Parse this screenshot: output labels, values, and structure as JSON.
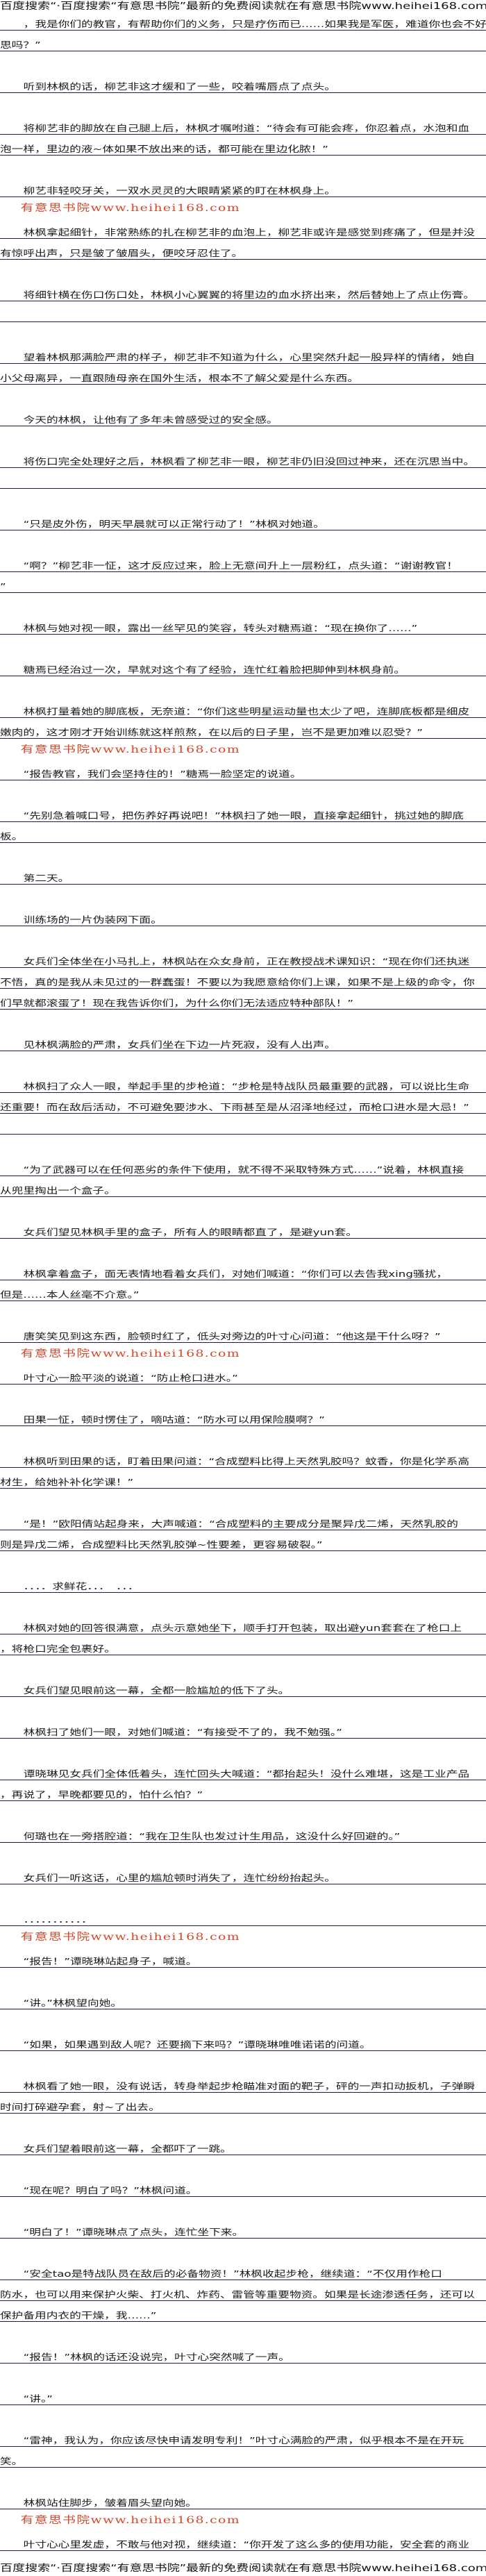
{
  "header": {
    "text": "百度搜索“·百度搜索“有意思书院”最新的免费阅读就在有意思书院www.heihei168.com"
  },
  "footer": {
    "text": "百度搜索“·百度搜索“有意思书院”最新的免费阅读就在有意思书院www.heihei168.com"
  },
  "watermark": {
    "text": "有意思书院www.heihei168.com",
    "color": "#d2482a"
  },
  "body": {
    "paragraphs": [
      [
        "，我是你们的教官，有帮助你们的义务，只是疗伤而已……如果我是军医，难道你也会不好意",
        "思吗？”"
      ],
      [
        "听到林枫的话，柳艺非这才缓和了一些，咬着嘴唇点了点头。"
      ],
      [
        "将柳艺非的脚放在自己腿上后，林枫才嘱咐道：“待会有可能会疼，你忍着点，水泡和血",
        "泡一样，里边的液~体如果不放出来的话，都可能在里边化脓！”"
      ],
      [
        "柳艺非轻咬牙关，一双水灵灵的大眼睛紧紧的盯在林枫身上。"
      ],
      [
        "林枫拿起细针，非常熟练的扎在柳艺非的血泡上，柳艺非或许是感觉到疼痛了，但是并没",
        "有惊呼出声，只是皱了皱眉头，便咬牙忍住了。"
      ],
      [
        "将细针横在伤口伤口处，林枫小心翼翼的将里边的血水挤出来，然后替她上了点止伤膏。",
        ""
      ],
      [
        "望着林枫那满脸严肃的样子，柳艺非不知道为什么，心里突然升起一股异样的情绪，她自",
        "小父母离异，一直跟随母亲在国外生活，根本不了解父爱是什么东西。"
      ],
      [
        "今天的林枫，让他有了多年未曾感受过的安全感。"
      ],
      [
        "将伤口完全处理好之后，林枫看了柳艺非一眼，柳艺非仍旧没回过神来，还在沉思当中。",
        ""
      ],
      [
        "“只是皮外伤，明天早晨就可以正常行动了！”林枫对她道。"
      ],
      [
        "“啊？”柳艺非一怔，这才反应过来，脸上无意间升上一层粉红，点头道：“谢谢教官！",
        "”"
      ],
      [
        "林枫与她对视一眼，露出一丝罕见的笑容，转头对糖焉道：“现在换你了……”"
      ],
      [
        "糖焉已经治过一次，早就对这个有了经验，连忙红着脸把脚伸到林枫身前。"
      ],
      [
        "林枫打量着她的脚底板，无奈道：“你们这些明星运动量也太少了吧，连脚底板都是细皮",
        "嫩肉的，这才刚才开始训练就这样煎熬，在以后的日子里，岂不是更加难以忍受？”"
      ],
      [
        "“报告教官，我们会坚持住的！”糖焉一脸坚定的说道。"
      ],
      [
        "“先别急着喊口号，把伤养好再说吧！”林枫扫了她一眼，直接拿起细针，挑过她的脚底",
        "板。"
      ],
      [
        "第二天。"
      ],
      [
        "训练场的一片伪装网下面。"
      ],
      [
        "女兵们全体坐在小马扎上，林枫站在众女身前，正在教授战术课知识：“现在你们还执迷",
        "不悟，真的是我从未见过的一群蠢蛋！不要以为我愿意给你们上课，如果不是上级的命令，你",
        "们早就都滚蛋了！现在我告诉你们，为什么你们无法适应特种部队！”"
      ],
      [
        "见林枫满脸的严肃，女兵们坐在下边一片死寂，没有人出声。"
      ],
      [
        "林枫扫了众人一眼，举起手里的步枪道：“步枪是特战队员最重要的武器，可以说比生命",
        "还重要！而在敌后活动，不可避免要涉水、下雨甚至是从沼泽地经过，而枪口进水是大忌！”",
        ""
      ],
      [
        "“为了武器可以在任何恶劣的条件下使用，就不得不采取特殊方式……”说着，林枫直接",
        "从兜里掏出一个盒子。"
      ],
      [
        "女兵们望见林枫手里的盒子，所有人的眼睛都直了，是避yun套。"
      ],
      [
        "林枫拿着盒子，面无表情地看着女兵们，对她们喊道：“你们可以去告我xing骚扰，",
        "但是……本人丝毫不介意。”"
      ],
      [
        "唐笑笑见到这东西，脸顿时红了，低头对旁边的叶寸心问道：“他这是干什么呀？”"
      ],
      [
        "叶寸心一脸平淡的说道：“防止枪口进水。”"
      ],
      [
        "田果一怔，顿时愣住了，嘀咕道：“防水可以用保险膜啊？”"
      ],
      [
        "林枫听到田果的话，盯着田果问道：“合成塑料比得上天然乳胶吗？蚊香，你是化学系高",
        "材生，给她补补化学课！”"
      ],
      [
        "“是！”欧阳倩站起身来，大声喊道：“合成塑料的主要成分是聚异戊二烯，天然乳胶的",
        "则是异戊二烯，合成塑料比天然乳胶弹~性要差，更容易破裂。”"
      ],
      [
        "．．．．求鲜花．．．　．．．"
      ],
      [
        "林枫对她的回答很满意，点头示意她坐下，顺手打开包装，取出避yun套套在了枪口上",
        "，将枪口完全包裹好。"
      ],
      [
        "女兵们望见眼前这一幕，全都一脸尴尬的低下了头。"
      ],
      [
        "林枫扫了她们一眼，对她们喊道：“有接受不了的，我不勉强。”"
      ],
      [
        "谭晓琳见女兵们全体低着头，连忙回头大喊道：“都抬起头！没什么难堪，这是工业产品",
        "，再说了，早晚都要见的，怕什么怕？”"
      ],
      [
        "何璐也在一旁搭腔道：“我在卫生队也发过计生用品，这没什么好回避的。”"
      ],
      [
        "女兵们一听这话，心里的尴尬顿时消失了，连忙纷纷抬起头。"
      ],
      [
        "．．．．．．．．．．．"
      ],
      [
        "“报告！”谭晓琳站起身子，喊道。"
      ],
      [
        "“讲。”林枫望向她。"
      ],
      [
        "“如果，如果遇到敌人呢？还要摘下来吗？”谭晓琳唯唯诺诺的问道。"
      ],
      [
        "林枫看了她一眼，没有说话，转身举起步枪瞄准对面的靶子，砰的一声扣动扳机，子弹瞬",
        "时间打碎避孕套，射~了出去。"
      ],
      [
        "女兵们望着眼前这一幕，全都吓了一跳。"
      ],
      [
        "“现在呢？明白了吗？”林枫问道。"
      ],
      [
        "“明白了！”谭晓琳点了点头，连忙坐下来。"
      ],
      [
        "“安全tao是特战队员在敌后的必备物资！”林枫收起步枪，继续道：“不仅用作枪口",
        "防水，也可以用来保护火柴、打火机、炸药、雷管等重要物资。如果是长途渗透任务，还可以",
        "保护备用内衣的干燥，我……”"
      ],
      [
        "“报告！”林枫的话还没说完，叶寸心突然喊了一声。"
      ],
      [
        "“讲。”"
      ],
      [
        "“雷神，我认为，你应该尽快申请发明专利！”叶寸心满脸的严肃，似乎根本不是在开玩",
        "笑。"
      ],
      [
        "林枫站住脚步，皱着眉头望向她。"
      ],
      [
        "叶寸心心里发虚，不敢与他对视，继续道：“你开发了这么多的使用功能，安全套的商业"
      ]
    ]
  }
}
